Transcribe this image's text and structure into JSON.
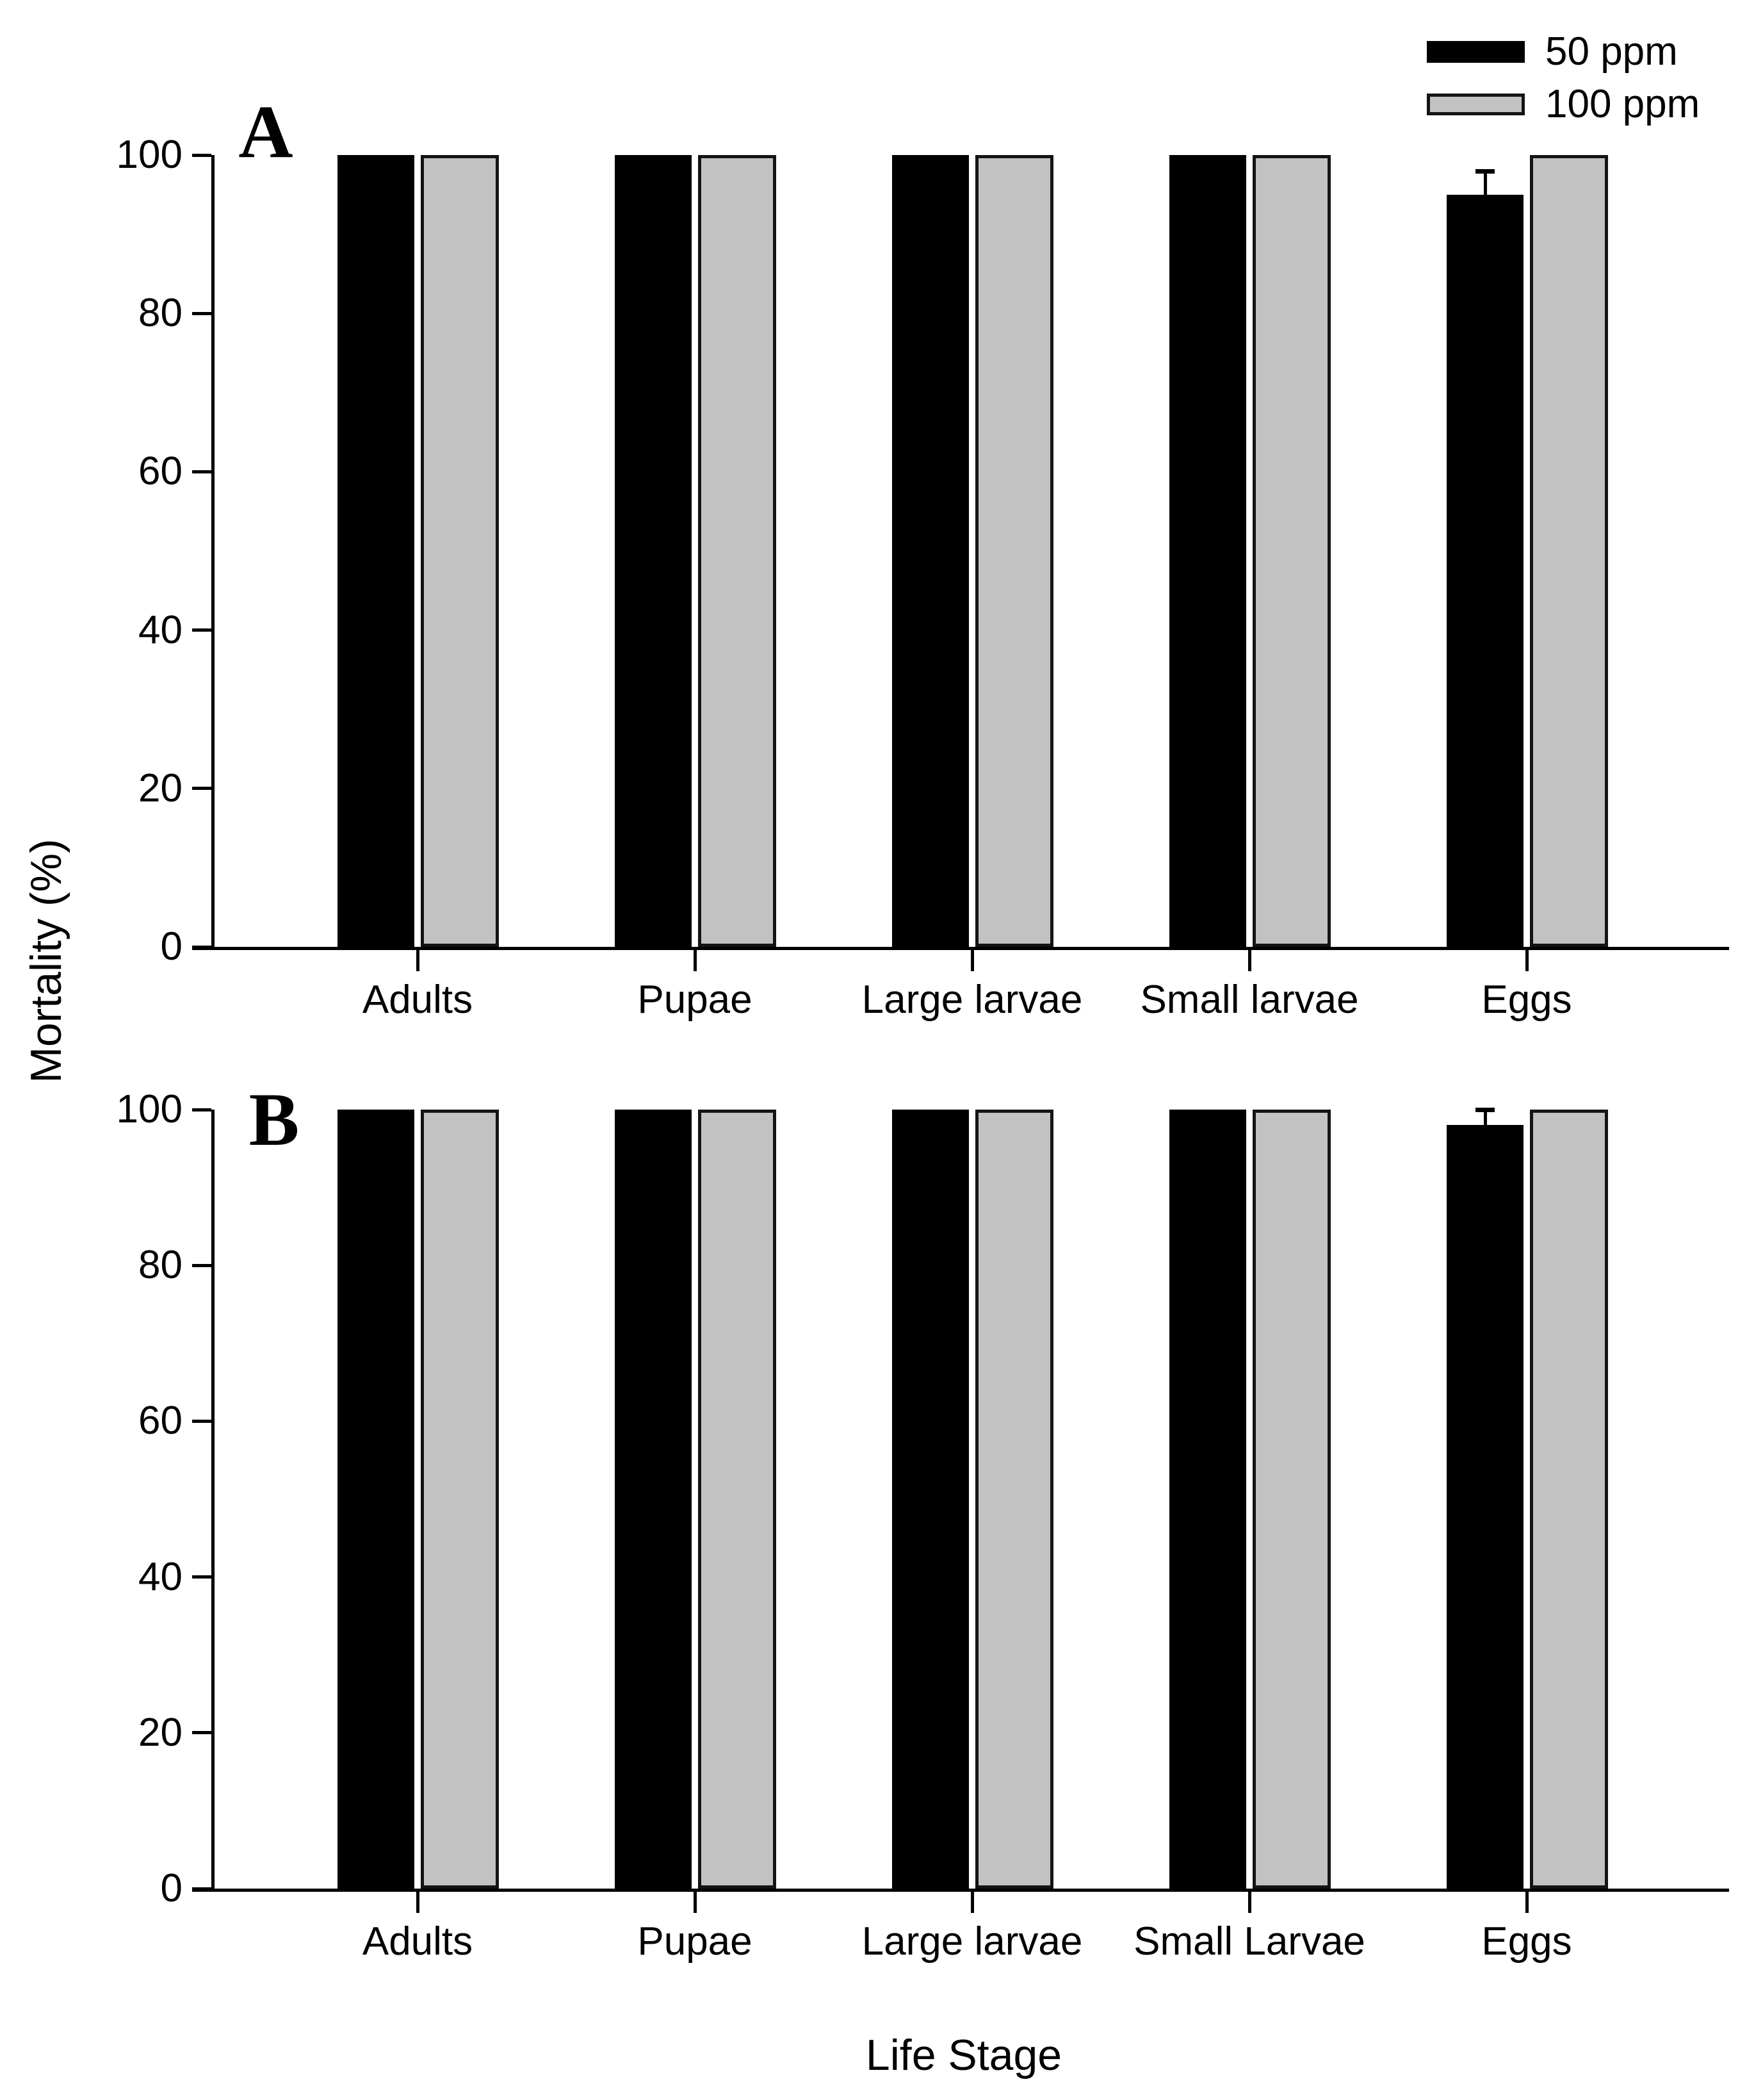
{
  "figure": {
    "ylabel": "Mortality (%)",
    "xlabel": "Life Stage"
  },
  "legend": {
    "items": [
      {
        "label": "50 ppm",
        "swatch_color": "#000000"
      },
      {
        "label": "100 ppm",
        "swatch_color": "#c2c2c2"
      }
    ]
  },
  "chart_data": [
    {
      "panel": "A",
      "type": "bar",
      "categories": [
        "Adults",
        "Pupae",
        "Large larvae",
        "Small larvae",
        "Eggs"
      ],
      "series": [
        {
          "name": "50 ppm",
          "color": "#000000",
          "values": [
            100,
            100,
            100,
            100,
            95
          ],
          "errors": [
            0,
            0,
            0,
            0,
            3
          ]
        },
        {
          "name": "100 ppm",
          "color": "#c2c2c2",
          "values": [
            100,
            100,
            100,
            100,
            100
          ],
          "errors": [
            0,
            0,
            0,
            0,
            0
          ]
        }
      ],
      "ylabel": "Mortality (%)",
      "xlabel": "",
      "ylim": [
        0,
        100
      ],
      "yticks": [
        0,
        20,
        40,
        60,
        80,
        100
      ],
      "grid": false,
      "legend_position": "top-right"
    },
    {
      "panel": "B",
      "type": "bar",
      "categories": [
        "Adults",
        "Pupae",
        "Large larvae",
        "Small Larvae",
        "Eggs"
      ],
      "series": [
        {
          "name": "50 ppm",
          "color": "#000000",
          "values": [
            100,
            100,
            100,
            100,
            98
          ],
          "errors": [
            0,
            0,
            0,
            0,
            2
          ]
        },
        {
          "name": "100 ppm",
          "color": "#c2c2c2",
          "values": [
            100,
            100,
            100,
            100,
            100
          ],
          "errors": [
            0,
            0,
            0,
            0,
            0
          ]
        }
      ],
      "ylabel": "Mortality (%)",
      "xlabel": "Life Stage",
      "ylim": [
        0,
        100
      ],
      "yticks": [
        0,
        20,
        40,
        60,
        80,
        100
      ],
      "grid": false,
      "legend_position": "none"
    }
  ],
  "colors": {
    "bar_50ppm": "#000000",
    "bar_100ppm": "#c2c2c2",
    "bar_border": "#141414",
    "axis": "#000000",
    "background": "#ffffff"
  }
}
